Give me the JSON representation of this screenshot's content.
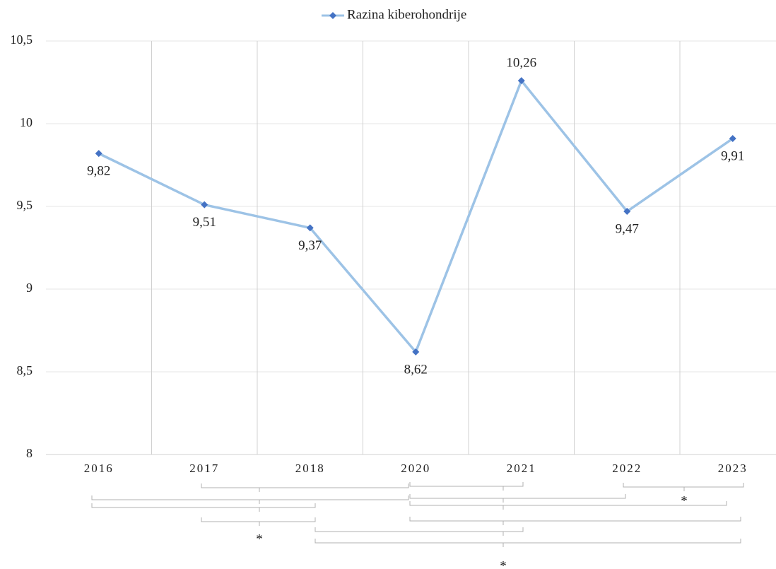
{
  "chart_data": {
    "type": "line",
    "categories": [
      "2016",
      "2017",
      "2018",
      "2020",
      "2021",
      "2022",
      "2023"
    ],
    "series": [
      {
        "name": "Razina kiberohondrije",
        "color": "#9dc3e6",
        "marker_color": "#4472c4",
        "values": [
          9.82,
          9.51,
          9.37,
          8.62,
          10.26,
          9.47,
          9.91
        ],
        "value_labels": [
          "9,82",
          "9,51",
          "9,37",
          "8,62",
          "10,26",
          "9,47",
          "9,91"
        ],
        "label_positions": [
          "below",
          "below",
          "below",
          "below",
          "above",
          "below",
          "below"
        ]
      }
    ],
    "ylim": [
      8,
      10.5
    ],
    "yticks": [
      8,
      {
        "value": 8.5,
        "label": "8,5"
      },
      9,
      {
        "value": 9.5,
        "label": "9,5"
      },
      10,
      {
        "value": 10.5,
        "label": "10,5"
      }
    ],
    "grid": true,
    "legend": "top",
    "annotations": [
      "*",
      "*",
      "*"
    ]
  }
}
